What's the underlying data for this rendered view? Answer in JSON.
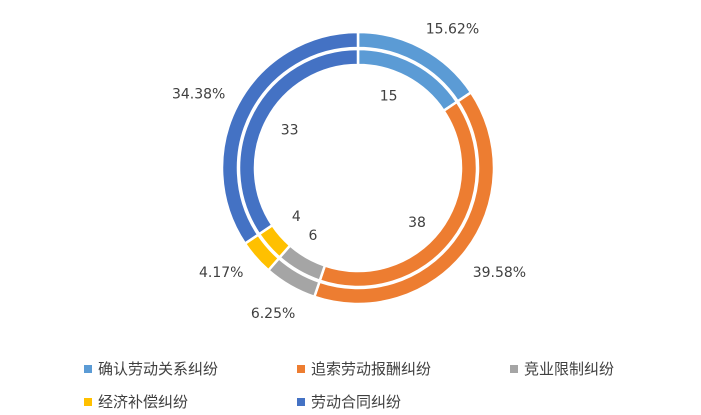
{
  "chart_data": {
    "type": "doughnut",
    "categories": [
      "确认劳动关系纠纷",
      "追索劳动报酬纠纷",
      "竞业限制纠纷",
      "经济补偿纠纷",
      "劳动合同纠纷"
    ],
    "colors": [
      "#5B9BD5",
      "#ED7D31",
      "#A5A5A5",
      "#FFC000",
      "#4472C4"
    ],
    "series": [
      {
        "ring": "outer",
        "values": [
          15.62,
          39.58,
          6.25,
          4.17,
          34.38
        ],
        "labels": [
          "15.62%",
          "39.58%",
          "6.25%",
          "4.17%",
          "34.38%"
        ]
      },
      {
        "ring": "inner",
        "values": [
          15,
          38,
          6,
          4,
          33
        ],
        "labels": [
          "15",
          "38",
          "6",
          "4",
          "33"
        ]
      }
    ],
    "legend_position": "bottom"
  }
}
